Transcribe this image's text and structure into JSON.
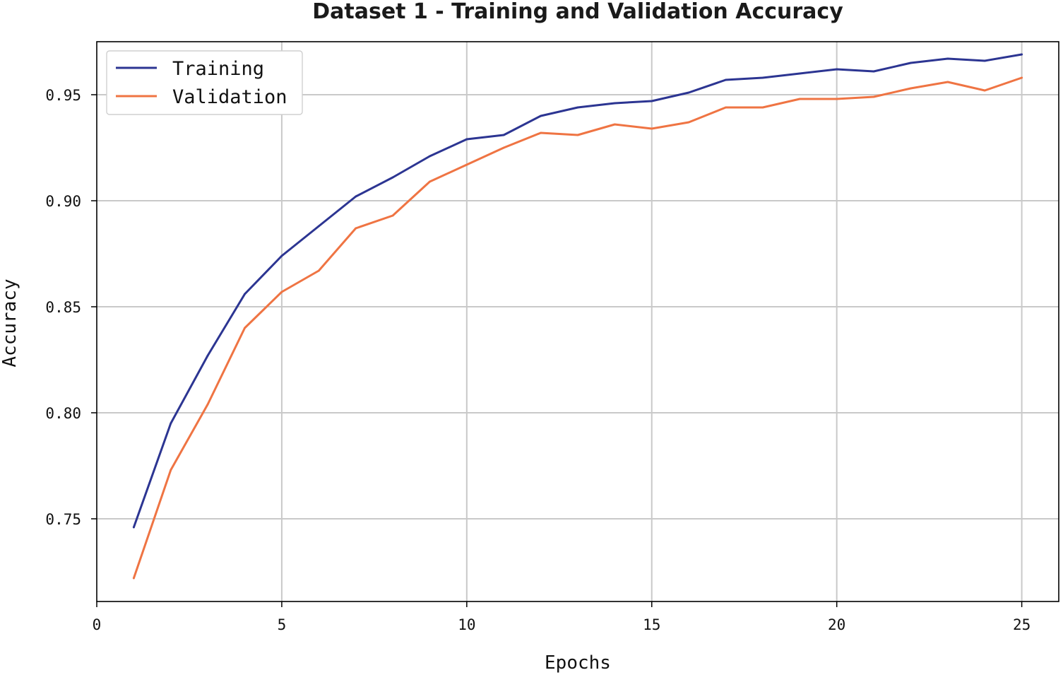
{
  "chart_data": {
    "type": "line",
    "title": "Dataset 1 - Training and Validation Accuracy",
    "xlabel": "Epochs",
    "ylabel": "Accuracy",
    "xlim": [
      0,
      26
    ],
    "ylim": [
      0.711,
      0.975
    ],
    "xticks": [
      0,
      5,
      10,
      15,
      20,
      25
    ],
    "xtick_labels": [
      "0",
      "5",
      "10",
      "15",
      "20",
      "25"
    ],
    "yticks": [
      0.75,
      0.8,
      0.85,
      0.9,
      0.95
    ],
    "ytick_labels": [
      "0.75",
      "0.80",
      "0.85",
      "0.90",
      "0.95"
    ],
    "grid": true,
    "legend_position": "top-left",
    "x": [
      1,
      2,
      3,
      4,
      5,
      6,
      7,
      8,
      9,
      10,
      11,
      12,
      13,
      14,
      15,
      16,
      17,
      18,
      19,
      20,
      21,
      22,
      23,
      24,
      25
    ],
    "series": [
      {
        "name": "Training",
        "color": "#2c3592",
        "values": [
          0.746,
          0.795,
          0.827,
          0.856,
          0.874,
          0.888,
          0.902,
          0.911,
          0.921,
          0.929,
          0.931,
          0.94,
          0.944,
          0.946,
          0.947,
          0.951,
          0.957,
          0.958,
          0.96,
          0.962,
          0.961,
          0.965,
          0.967,
          0.966,
          0.969
        ]
      },
      {
        "name": "Validation",
        "color": "#ef7443",
        "values": [
          0.722,
          0.773,
          0.804,
          0.84,
          0.857,
          0.867,
          0.887,
          0.893,
          0.909,
          0.917,
          0.925,
          0.932,
          0.931,
          0.936,
          0.934,
          0.937,
          0.944,
          0.944,
          0.948,
          0.948,
          0.949,
          0.953,
          0.956,
          0.952,
          0.958
        ]
      }
    ]
  }
}
